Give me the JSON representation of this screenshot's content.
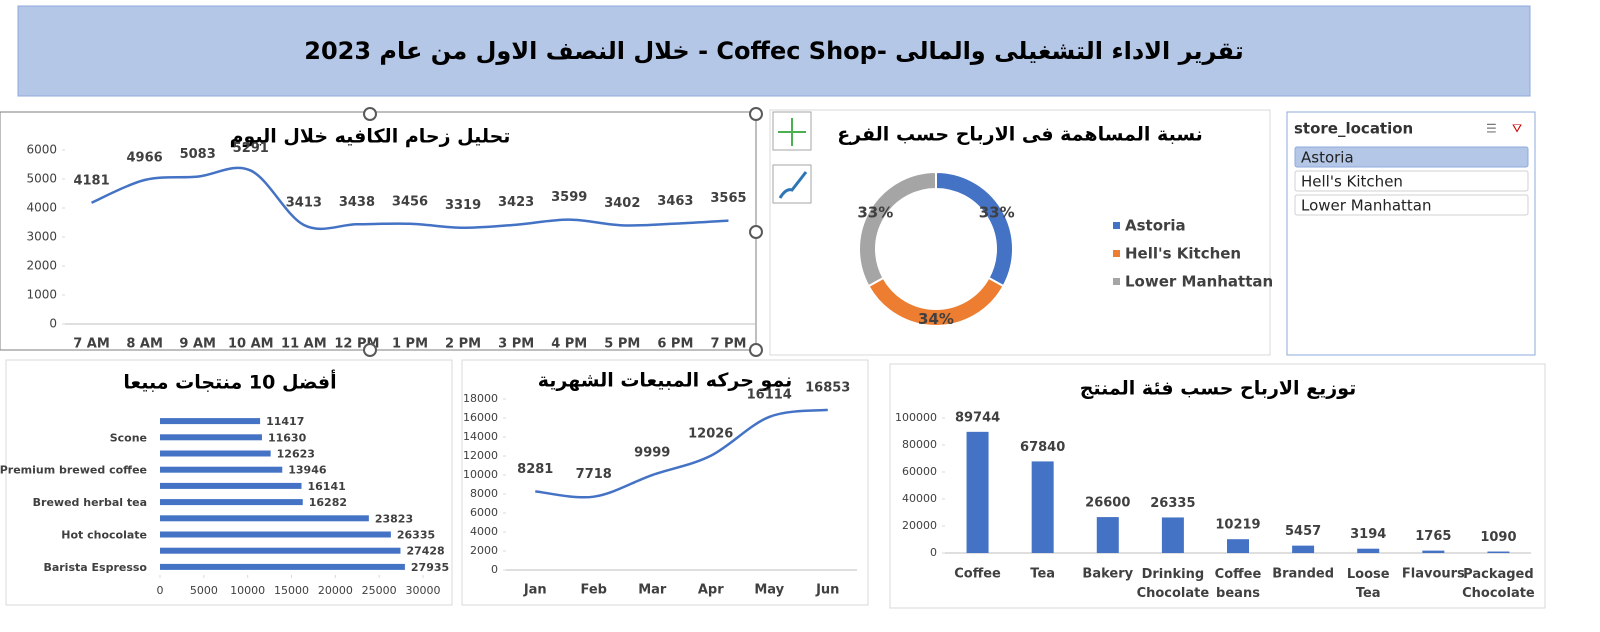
{
  "header": {
    "title": "تقرير الاداء التشغيلى والمالى -Coffec Shop - خلال النصف الاول من عام 2023"
  },
  "slicer": {
    "title": "store_location",
    "items": [
      "Astoria",
      "Hell's Kitchen",
      "Lower Manhattan"
    ]
  },
  "chart_data": [
    {
      "type": "line",
      "title": "تحليل زحام الكافيه خلال اليوم",
      "categories": [
        "7 AM",
        "8 AM",
        "9 AM",
        "10 AM",
        "11 AM",
        "12 PM",
        "1 PM",
        "2 PM",
        "3 PM",
        "4 PM",
        "5 PM",
        "6 PM",
        "7 PM"
      ],
      "values": [
        4181,
        4966,
        5083,
        5291,
        3413,
        3438,
        3456,
        3319,
        3423,
        3599,
        3402,
        3463,
        3565
      ],
      "color": "#4472c4",
      "ylim": [
        0,
        6000
      ],
      "yticks": [
        0,
        1000,
        2000,
        3000,
        4000,
        5000,
        6000
      ],
      "grid": false
    },
    {
      "type": "donut",
      "title": "نسبة المساهمة فى الارباح حسب الفرع",
      "categories": [
        "Astoria",
        "Hell's Kitchen",
        "Lower Manhattan"
      ],
      "values": [
        33,
        34,
        33
      ],
      "value_labels": [
        "33%",
        "34%",
        "33%"
      ],
      "colors": [
        "#4472c4",
        "#ed7d31",
        "#a5a5a5"
      ],
      "legend": "right"
    },
    {
      "type": "hbar",
      "title": "أفضل 10 منتجات مبيعا",
      "categories": [
        null,
        "Scone",
        null,
        "Premium brewed coffee",
        null,
        "Brewed herbal tea",
        null,
        "Hot chocolate",
        null,
        "Barista Espresso"
      ],
      "values": [
        11417,
        11630,
        12623,
        13946,
        16141,
        16282,
        23823,
        26335,
        27428,
        27935
      ],
      "color": "#4472c4",
      "xlim": [
        0,
        30000
      ],
      "xticks": [
        0,
        5000,
        10000,
        15000,
        20000,
        25000,
        30000
      ],
      "grid": false
    },
    {
      "type": "line",
      "title": "نمو حركه المبيعات الشهرية",
      "categories": [
        "Jan",
        "Feb",
        "Mar",
        "Apr",
        "May",
        "Jun"
      ],
      "values": [
        8281,
        7718,
        9999,
        12026,
        16114,
        16853
      ],
      "color": "#4472c4",
      "ylim": [
        0,
        18000
      ],
      "yticks": [
        0,
        2000,
        4000,
        6000,
        8000,
        10000,
        12000,
        14000,
        16000,
        18000
      ],
      "grid": false
    },
    {
      "type": "bar",
      "title": "توزيع الارباح حسب فئة المنتج",
      "categories": [
        "Coffee",
        "Tea",
        "Bakery",
        "Drinking Chocolate",
        "Coffee beans",
        "Branded",
        "Loose Tea",
        "Flavours",
        "Packaged Chocolate"
      ],
      "values": [
        89744,
        67840,
        26600,
        26335,
        10219,
        5457,
        3194,
        1765,
        1090
      ],
      "color": "#4472c4",
      "ylim": [
        0,
        100000
      ],
      "yticks": [
        0,
        20000,
        40000,
        60000,
        80000,
        100000
      ],
      "grid": false
    }
  ]
}
